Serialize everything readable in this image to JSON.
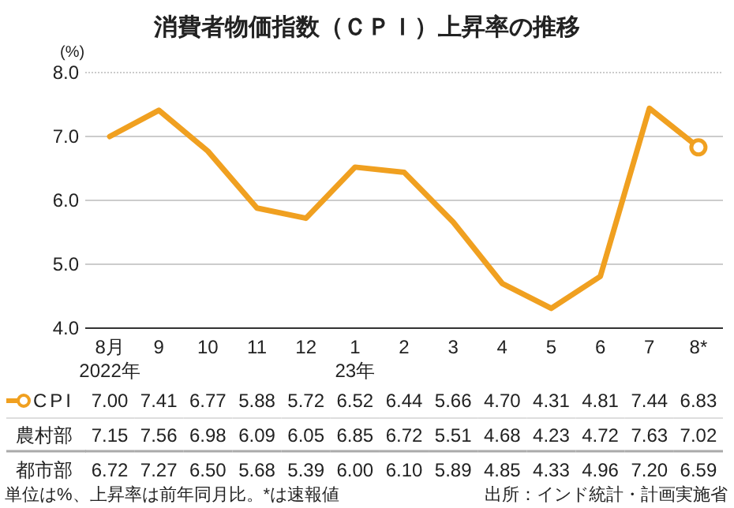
{
  "chart_data": [
    {
      "type": "line",
      "title": "消費者物価指数（ＣＰＩ）上昇率の推移",
      "ylabel": "(%)",
      "categories": [
        "8月\n2022年",
        "9",
        "10",
        "11",
        "12",
        "1\n23年",
        "2",
        "3",
        "4",
        "5",
        "6",
        "7",
        "8*"
      ],
      "ylim": [
        4.0,
        8.0
      ],
      "yticks": [
        {
          "value": 4,
          "label": "4.0"
        },
        {
          "value": 5,
          "label": "5.0"
        },
        {
          "value": 6,
          "label": "6.0"
        },
        {
          "value": 7,
          "label": "7.0"
        },
        {
          "value": 8,
          "label": "8.0"
        }
      ],
      "grid": "y",
      "legend": "bottom",
      "line_style": "solid",
      "series": [
        {
          "name": "CPI",
          "color": "#f0a020",
          "values": [
            7.0,
            7.41,
            6.77,
            5.88,
            5.72,
            6.52,
            6.44,
            5.66,
            4.7,
            4.31,
            4.81,
            7.44,
            6.83
          ]
        }
      ]
    },
    {
      "type": "heatmap",
      "categories": [
        null,
        null,
        null,
        null,
        null,
        null,
        null,
        null,
        null,
        null,
        null,
        null,
        null
      ],
      "y_categories": [
        null,
        "農村部",
        "都市部"
      ],
      "cells": [
        [
          7.0,
          7.41,
          6.77,
          5.88,
          5.72,
          6.52,
          6.44,
          5.66,
          4.7,
          4.31,
          4.81,
          7.44,
          6.83
        ],
        [
          7.15,
          7.56,
          6.98,
          6.09,
          6.05,
          6.85,
          6.72,
          5.51,
          4.68,
          4.23,
          4.72,
          7.63,
          7.02
        ],
        [
          6.72,
          7.27,
          6.5,
          5.68,
          5.39,
          6.0,
          6.1,
          5.89,
          4.85,
          4.33,
          4.96,
          7.2,
          6.59
        ]
      ],
      "cell_labels": [
        [
          "7.00",
          "7.41",
          "6.77",
          "5.88",
          "5.72",
          "6.52",
          "6.44",
          "5.66",
          "4.70",
          "4.31",
          "4.81",
          "7.44",
          "6.83"
        ],
        [
          "7.15",
          "7.56",
          "6.98",
          "6.09",
          "6.05",
          "6.85",
          "6.72",
          "5.51",
          "4.68",
          "4.23",
          "4.72",
          "7.63",
          "7.02"
        ],
        [
          "6.72",
          "7.27",
          "6.50",
          "5.68",
          "5.39",
          "6.00",
          "6.10",
          "5.89",
          "4.85",
          "4.33",
          "4.96",
          "7.20",
          "6.59"
        ]
      ],
      "annotations": [
        "単位は%、上昇率は前年同月比。*は速報値",
        "出所：インド統計・計画実施省"
      ]
    }
  ]
}
